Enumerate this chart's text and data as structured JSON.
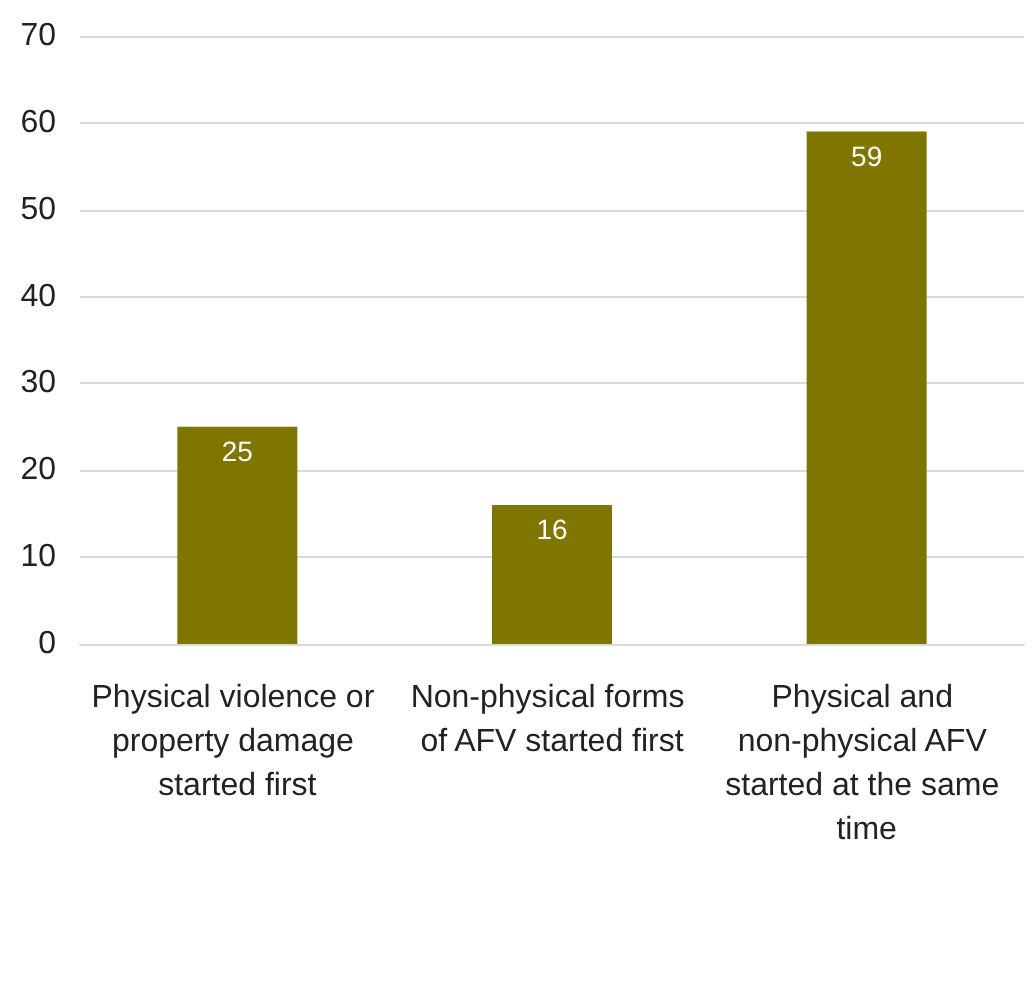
{
  "chart_data": {
    "type": "bar",
    "categories": [
      "Physical violence or property damage started first",
      "Non-physical forms of AFV started first",
      "Physical and non-physical AFV started at the same time"
    ],
    "values": [
      25,
      16,
      59
    ],
    "color": "#7f7600",
    "ylim": [
      0,
      70
    ],
    "yticks": [
      0,
      10,
      20,
      30,
      40,
      50,
      60,
      70
    ],
    "grid": "y",
    "data_labels": true
  }
}
